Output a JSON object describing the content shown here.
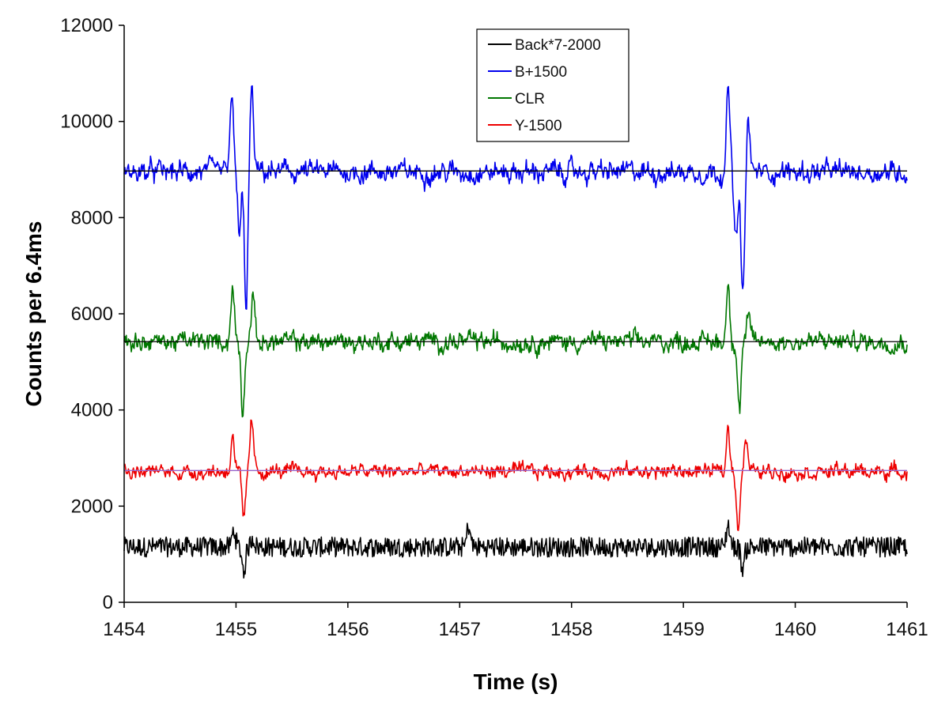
{
  "chart_data": {
    "type": "line",
    "title": "",
    "xlabel": "Time (s)",
    "ylabel": "Counts per 6.4ms",
    "xlim": [
      1454,
      1461
    ],
    "ylim": [
      0,
      12000
    ],
    "x_ticks": [
      1454,
      1455,
      1456,
      1457,
      1458,
      1459,
      1460,
      1461
    ],
    "y_ticks": [
      0,
      2000,
      4000,
      6000,
      8000,
      10000,
      12000
    ],
    "grid": false,
    "legend_position": "top-center",
    "series": [
      {
        "name": "Back*7-2000",
        "color": "#000000",
        "baseline": 1150,
        "noise": 160,
        "events": [
          {
            "t": 1454.98,
            "dy": 350
          },
          {
            "t": 1455.07,
            "dy": -500
          },
          {
            "t": 1455.15,
            "dy": 200
          },
          {
            "t": 1457.08,
            "dy": 450
          },
          {
            "t": 1459.4,
            "dy": 480
          },
          {
            "t": 1459.53,
            "dy": -450
          }
        ]
      },
      {
        "name": "B+1500",
        "color": "#0000ee",
        "baseline": 8950,
        "noise": 200,
        "mean_line": 8970,
        "mean_line_color": "#000000",
        "events": [
          {
            "t": 1454.96,
            "dy": 1600
          },
          {
            "t": 1455.03,
            "dy": -1300
          },
          {
            "t": 1455.09,
            "dy": -2800
          },
          {
            "t": 1455.14,
            "dy": 1700
          },
          {
            "t": 1459.4,
            "dy": 1700
          },
          {
            "t": 1459.47,
            "dy": -1500
          },
          {
            "t": 1459.53,
            "dy": -2700
          },
          {
            "t": 1459.58,
            "dy": 1000
          }
        ]
      },
      {
        "name": "CLR",
        "color": "#007700",
        "baseline": 5420,
        "noise": 180,
        "mean_line": 5420,
        "mean_line_color": "#000000",
        "events": [
          {
            "t": 1454.97,
            "dy": 1100
          },
          {
            "t": 1455.06,
            "dy": -1400
          },
          {
            "t": 1455.15,
            "dy": 1000
          },
          {
            "t": 1459.4,
            "dy": 1200
          },
          {
            "t": 1459.5,
            "dy": -1400
          },
          {
            "t": 1459.58,
            "dy": 500
          }
        ]
      },
      {
        "name": "Y-1500",
        "color": "#ee0000",
        "baseline": 2720,
        "noise": 140,
        "mean_line": 2740,
        "mean_line_color": "#9966cc",
        "events": [
          {
            "t": 1454.97,
            "dy": 800
          },
          {
            "t": 1455.07,
            "dy": -1100
          },
          {
            "t": 1455.14,
            "dy": 1050
          },
          {
            "t": 1459.4,
            "dy": 900
          },
          {
            "t": 1459.49,
            "dy": -1100
          },
          {
            "t": 1459.56,
            "dy": 700
          }
        ]
      }
    ]
  }
}
